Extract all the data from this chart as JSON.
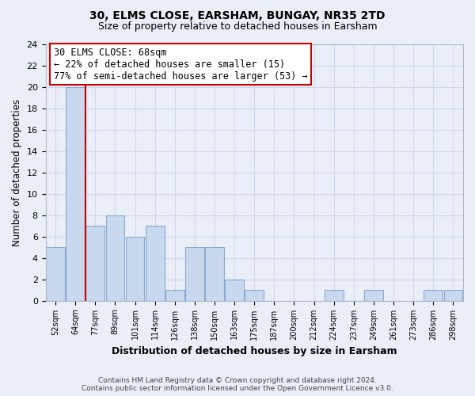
{
  "title1": "30, ELMS CLOSE, EARSHAM, BUNGAY, NR35 2TD",
  "title2": "Size of property relative to detached houses in Earsham",
  "xlabel": "Distribution of detached houses by size in Earsham",
  "ylabel": "Number of detached properties",
  "bin_labels": [
    "52sqm",
    "64sqm",
    "77sqm",
    "89sqm",
    "101sqm",
    "114sqm",
    "126sqm",
    "138sqm",
    "150sqm",
    "163sqm",
    "175sqm",
    "187sqm",
    "200sqm",
    "212sqm",
    "224sqm",
    "237sqm",
    "249sqm",
    "261sqm",
    "273sqm",
    "286sqm",
    "298sqm"
  ],
  "bin_values": [
    5,
    20,
    7,
    8,
    6,
    7,
    1,
    5,
    5,
    2,
    1,
    0,
    0,
    0,
    1,
    0,
    1,
    0,
    0,
    1,
    1
  ],
  "bar_color": "#c8d8ee",
  "bar_edge_color": "#8caad0",
  "property_line_x": 1.5,
  "annotation_text1": "30 ELMS CLOSE: 68sqm",
  "annotation_text2": "← 22% of detached houses are smaller (15)",
  "annotation_text3": "77% of semi-detached houses are larger (53) →",
  "annotation_box_color": "#ffffff",
  "annotation_box_edge": "#cc0000",
  "property_line_color": "#cc0000",
  "ylim": [
    0,
    24
  ],
  "yticks": [
    0,
    2,
    4,
    6,
    8,
    10,
    12,
    14,
    16,
    18,
    20,
    22,
    24
  ],
  "footer1": "Contains HM Land Registry data © Crown copyright and database right 2024.",
  "footer2": "Contains public sector information licensed under the Open Government Licence v3.0.",
  "grid_color": "#d0d8ea",
  "bg_color": "#eaeff7"
}
